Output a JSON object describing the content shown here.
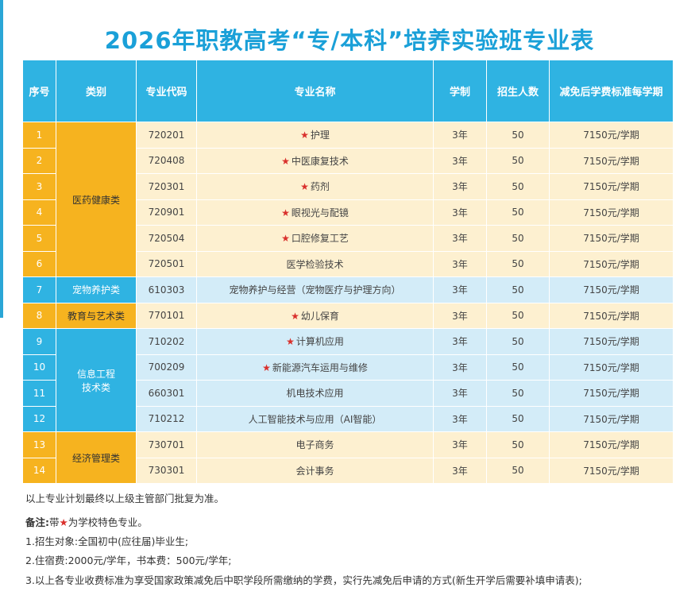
{
  "title": "2026年职教高考“专/本科”培养实验班专业表",
  "table": {
    "headers": [
      "序号",
      "类别",
      "专业代码",
      "专业名称",
      "学制",
      "招生人数",
      "减免后学费标准每学期"
    ],
    "rows": [
      {
        "no": "1",
        "category": "医药健康类",
        "code": "720201",
        "star": true,
        "name": "护理",
        "duration": "3年",
        "enroll": "50",
        "fee": "7150元/学期"
      },
      {
        "no": "2",
        "category": "医药健康类",
        "code": "720408",
        "star": true,
        "name": "中医康复技术",
        "duration": "3年",
        "enroll": "50",
        "fee": "7150元/学期"
      },
      {
        "no": "3",
        "category": "医药健康类",
        "code": "720301",
        "star": true,
        "name": "药剂",
        "duration": "3年",
        "enroll": "50",
        "fee": "7150元/学期"
      },
      {
        "no": "4",
        "category": "医药健康类",
        "code": "720901",
        "star": true,
        "name": "眼视光与配镜",
        "duration": "3年",
        "enroll": "50",
        "fee": "7150元/学期"
      },
      {
        "no": "5",
        "category": "医药健康类",
        "code": "720504",
        "star": true,
        "name": "口腔修复工艺",
        "duration": "3年",
        "enroll": "50",
        "fee": "7150元/学期"
      },
      {
        "no": "6",
        "category": "医药健康类",
        "code": "720501",
        "star": false,
        "name": "医学检验技术",
        "duration": "3年",
        "enroll": "50",
        "fee": "7150元/学期"
      },
      {
        "no": "7",
        "category": "宠物养护类",
        "code": "610303",
        "star": false,
        "name": "宠物养护与经营（宠物医疗与护理方向）",
        "duration": "3年",
        "enroll": "50",
        "fee": "7150元/学期"
      },
      {
        "no": "8",
        "category": "教育与艺术类",
        "code": "770101",
        "star": true,
        "name": "幼儿保育",
        "duration": "3年",
        "enroll": "50",
        "fee": "7150元/学期"
      },
      {
        "no": "9",
        "category": "信息工程技术类",
        "code": "710202",
        "star": true,
        "name": "计算机应用",
        "duration": "3年",
        "enroll": "50",
        "fee": "7150元/学期"
      },
      {
        "no": "10",
        "category": "信息工程技术类",
        "code": "700209",
        "star": true,
        "name": "新能源汽车运用与维修",
        "duration": "3年",
        "enroll": "50",
        "fee": "7150元/学期"
      },
      {
        "no": "11",
        "category": "信息工程技术类",
        "code": "660301",
        "star": false,
        "name": "机电技术应用",
        "duration": "3年",
        "enroll": "50",
        "fee": "7150元/学期"
      },
      {
        "no": "12",
        "category": "信息工程技术类",
        "code": "710212",
        "star": false,
        "name": "人工智能技术与应用（AI智能）",
        "duration": "3年",
        "enroll": "50",
        "fee": "7150元/学期"
      },
      {
        "no": "13",
        "category": "经济管理类",
        "code": "730701",
        "star": false,
        "name": "电子商务",
        "duration": "3年",
        "enroll": "50",
        "fee": "7150元/学期"
      },
      {
        "no": "14",
        "category": "经济管理类",
        "code": "730301",
        "star": false,
        "name": "会计事务",
        "duration": "3年",
        "enroll": "50",
        "fee": "7150元/学期"
      }
    ],
    "category_lines": {
      "medical": "医药健康类",
      "pet": "宠物养护类",
      "edu": "教育与艺术类",
      "it_line1": "信息工程",
      "it_line2": "技术类",
      "econ": "经济管理类"
    },
    "star_symbol": "★"
  },
  "notes": {
    "approval": "以上专业计划最终以上级主管部门批复为准。",
    "remark_label": "备注:",
    "remark_prefix": "带",
    "remark_suffix": "为学校特色专业。",
    "items": [
      "1.招生对象:全国初中(应往届)毕业生;",
      "2.住宿费:2000元/学年，书本费：500元/学年;",
      "3.以上各专业收费标准为享受国家政策减免后中职学段所需缴纳的学费，实行先减免后申请的方式(新生开学后需要补填申请表);"
    ]
  },
  "colors": {
    "header_blue": "#2fb3e2",
    "title_blue": "#1aa0d8",
    "category_yellow": "#f6b31f",
    "row_yellow": "#fdf0d0",
    "row_blue": "#d3ecf8",
    "star_red": "#d9302c"
  }
}
